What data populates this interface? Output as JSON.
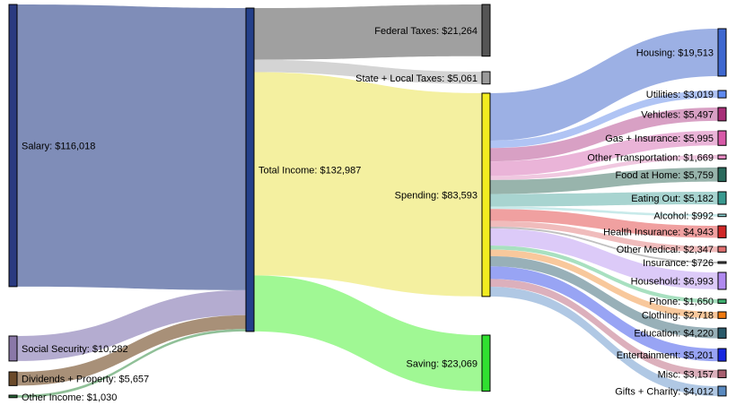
{
  "chart_data": {
    "type": "sankey",
    "nodes": [
      {
        "id": "salary",
        "label": "Salary: $116,018",
        "value": 116018,
        "color": "#2a3a80"
      },
      {
        "id": "social",
        "label": "Social Security: $10,282",
        "value": 10282,
        "color": "#8a78a8"
      },
      {
        "id": "dividends",
        "label": "Dividends + Property: $5,657",
        "value": 5657,
        "color": "#6b4a2a"
      },
      {
        "id": "other_income",
        "label": "Other Income: $1,030",
        "value": 1030,
        "color": "#2a6a3a"
      },
      {
        "id": "total",
        "label": "Total Income: $132,987",
        "value": 132987,
        "color": "#24408a"
      },
      {
        "id": "federal",
        "label": "Federal Taxes: $21,264",
        "value": 21264,
        "color": "#555555"
      },
      {
        "id": "state",
        "label": "State + Local Taxes: $5,061",
        "value": 5061,
        "color": "#9a9a9a"
      },
      {
        "id": "spending",
        "label": "Spending: $83,593",
        "value": 83593,
        "color": "#f2ec20"
      },
      {
        "id": "saving",
        "label": "Saving: $23,069",
        "value": 23069,
        "color": "#30e030"
      },
      {
        "id": "housing",
        "label": "Housing: $19,513",
        "value": 19513,
        "color": "#3f68d0"
      },
      {
        "id": "utilities",
        "label": "Utilities: $3,019",
        "value": 3019,
        "color": "#5f8af0"
      },
      {
        "id": "vehicles",
        "label": "Vehicles: $5,497",
        "value": 5497,
        "color": "#a82f78"
      },
      {
        "id": "gas",
        "label": "Gas + Insurance: $5,995",
        "value": 5995,
        "color": "#d85aa8"
      },
      {
        "id": "other_transp",
        "label": "Other Transportation: $1,669",
        "value": 1669,
        "color": "#e48ac0"
      },
      {
        "id": "food_home",
        "label": "Food at Home: $5,759",
        "value": 5759,
        "color": "#2a6a5c"
      },
      {
        "id": "eating_out",
        "label": "Eating Out: $5,182",
        "value": 5182,
        "color": "#3a9a90"
      },
      {
        "id": "alcohol",
        "label": "Alcohol: $992",
        "value": 992,
        "color": "#8fd8d8"
      },
      {
        "id": "health_ins",
        "label": "Health Insurance: $4,943",
        "value": 4943,
        "color": "#d02828"
      },
      {
        "id": "other_med",
        "label": "Other Medical: $2,347",
        "value": 2347,
        "color": "#e07070"
      },
      {
        "id": "insurance",
        "label": "Insurance: $726",
        "value": 726,
        "color": "#555555"
      },
      {
        "id": "household",
        "label": "Household: $6,993",
        "value": 6993,
        "color": "#b08af0"
      },
      {
        "id": "phone",
        "label": "Phone: $1,650",
        "value": 1650,
        "color": "#40b070"
      },
      {
        "id": "clothing",
        "label": "Clothing: $2,718",
        "value": 2718,
        "color": "#f07a10"
      },
      {
        "id": "education",
        "label": "Education: $4,220",
        "value": 4220,
        "color": "#2a5a6a"
      },
      {
        "id": "entertainment",
        "label": "Entertainment: $5,201",
        "value": 5201,
        "color": "#1828e0"
      },
      {
        "id": "misc",
        "label": "Misc: $3,157",
        "value": 3157,
        "color": "#a86070"
      },
      {
        "id": "gifts",
        "label": "Gifts + Charity: $4,012",
        "value": 4012,
        "color": "#5a8ac0"
      }
    ],
    "links": [
      {
        "source": "salary",
        "target": "total",
        "value": 116018,
        "color": "#7f8db8"
      },
      {
        "source": "social",
        "target": "total",
        "value": 10282,
        "color": "#b4acd0"
      },
      {
        "source": "dividends",
        "target": "total",
        "value": 5657,
        "color": "#a89078"
      },
      {
        "source": "other_income",
        "target": "total",
        "value": 1030,
        "color": "#90c098"
      },
      {
        "source": "total",
        "target": "federal",
        "value": 21264,
        "color": "#a0a0a0"
      },
      {
        "source": "total",
        "target": "state",
        "value": 5061,
        "color": "#d4d4d4"
      },
      {
        "source": "total",
        "target": "spending",
        "value": 83593,
        "color": "#f4f0a0"
      },
      {
        "source": "total",
        "target": "saving",
        "value": 23069,
        "color": "#a0f894"
      },
      {
        "source": "spending",
        "target": "housing",
        "value": 19513,
        "color": "#9cb0e4"
      },
      {
        "source": "spending",
        "target": "utilities",
        "value": 3019,
        "color": "#b0c4f4"
      },
      {
        "source": "spending",
        "target": "vehicles",
        "value": 5497,
        "color": "#d8a0c4"
      },
      {
        "source": "spending",
        "target": "gas",
        "value": 5995,
        "color": "#eab4d8"
      },
      {
        "source": "spending",
        "target": "other_transp",
        "value": 1669,
        "color": "#f0c8e0"
      },
      {
        "source": "spending",
        "target": "food_home",
        "value": 5759,
        "color": "#98b4ac"
      },
      {
        "source": "spending",
        "target": "eating_out",
        "value": 5182,
        "color": "#a8d4d0"
      },
      {
        "source": "spending",
        "target": "alcohol",
        "value": 992,
        "color": "#c8eaea"
      },
      {
        "source": "spending",
        "target": "health_ins",
        "value": 4943,
        "color": "#f0a0a0"
      },
      {
        "source": "spending",
        "target": "other_med",
        "value": 2347,
        "color": "#f0bcbc"
      },
      {
        "source": "spending",
        "target": "insurance",
        "value": 726,
        "color": "#c0c0c0"
      },
      {
        "source": "spending",
        "target": "household",
        "value": 6993,
        "color": "#dccaf8"
      },
      {
        "source": "spending",
        "target": "phone",
        "value": 1650,
        "color": "#a8e0c0"
      },
      {
        "source": "spending",
        "target": "clothing",
        "value": 2718,
        "color": "#f8c89c"
      },
      {
        "source": "spending",
        "target": "education",
        "value": 4220,
        "color": "#98b0b8"
      },
      {
        "source": "spending",
        "target": "entertainment",
        "value": 5201,
        "color": "#98a4f4"
      },
      {
        "source": "spending",
        "target": "misc",
        "value": 3157,
        "color": "#dcb0bc"
      },
      {
        "source": "spending",
        "target": "gifts",
        "value": 4012,
        "color": "#b0c8e4"
      }
    ]
  }
}
